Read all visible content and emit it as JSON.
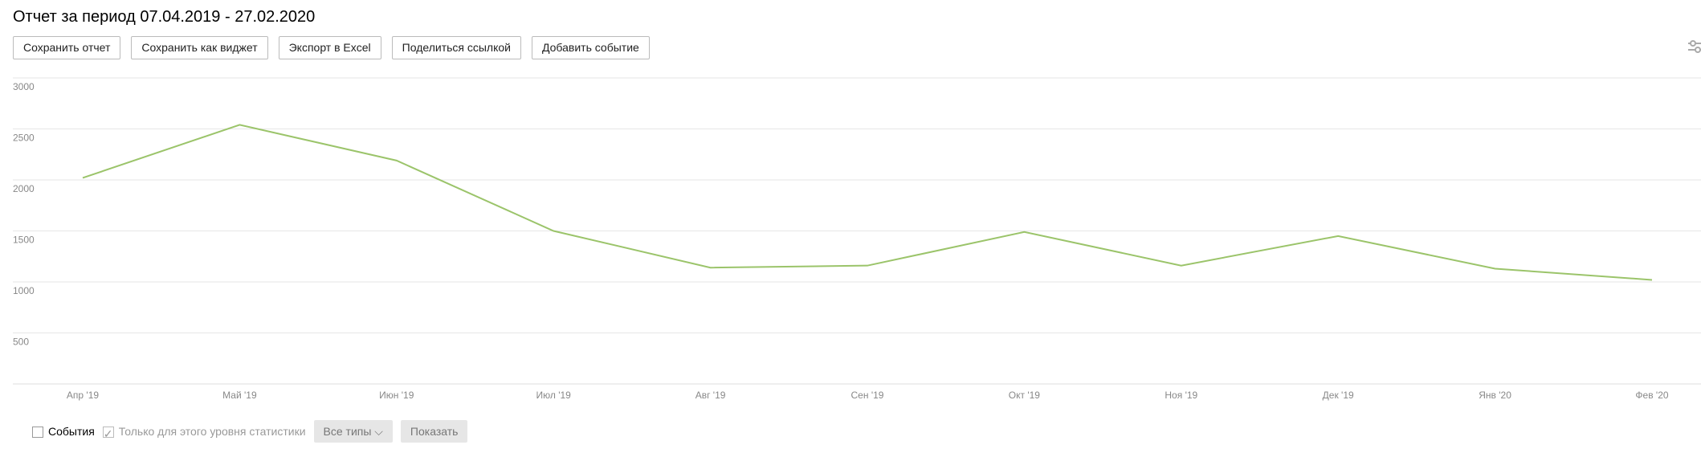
{
  "header": {
    "title": "Отчет за период 07.04.2019 - 27.02.2020"
  },
  "toolbar": {
    "buttons": [
      "Сохранить отчет",
      "Сохранить как виджет",
      "Экспорт в Excel",
      "Поделиться ссылкой",
      "Добавить событие"
    ]
  },
  "chart_data": {
    "type": "line",
    "categories": [
      "Апр '19",
      "Май '19",
      "Июн '19",
      "Июл '19",
      "Авг '19",
      "Сен '19",
      "Окт '19",
      "Ноя '19",
      "Дек '19",
      "Янв '20",
      "Фев '20"
    ],
    "series": [
      {
        "color": "#9bc46a",
        "values": [
          2020,
          2540,
          2190,
          1500,
          1140,
          1160,
          1490,
          1160,
          1450,
          1130,
          1020
        ]
      }
    ],
    "ylim": [
      0,
      3000
    ],
    "yticks": [
      500,
      1000,
      1500,
      2000,
      2500,
      3000
    ],
    "grid": true
  },
  "footer": {
    "events_checkbox": "События",
    "level_checkbox": "Только для этого уровня статистики",
    "types_button": "Все типы",
    "show_button": "Показать"
  }
}
